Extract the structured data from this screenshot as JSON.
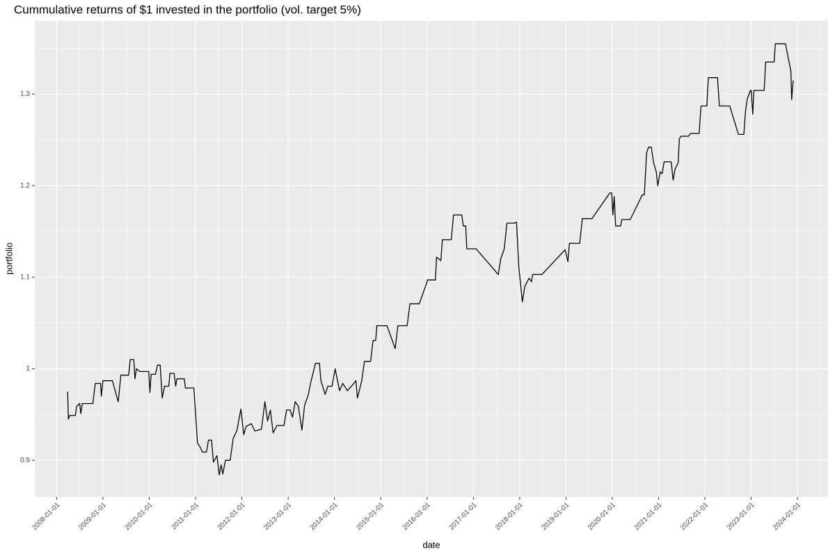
{
  "chart_data": {
    "type": "line",
    "title": "Cummulative returns of $1 invested in the portfolio (vol. target 5%)",
    "x_label": "date",
    "y_label": "portfolio",
    "x": [
      "2008-03-28",
      "2008-04-03",
      "2008-04-13",
      "2008-05-28",
      "2008-06-07",
      "2008-07-01",
      "2008-07-10",
      "2008-07-22",
      "2008-10-13",
      "2008-11-01",
      "2008-12-13",
      "2008-12-19",
      "2009-01-01",
      "2009-03-16",
      "2009-05-01",
      "2009-05-22",
      "2009-07-22",
      "2009-08-04",
      "2009-09-01",
      "2009-09-10",
      "2009-09-22",
      "2009-10-19",
      "2009-12-28",
      "2010-01-06",
      "2010-01-16",
      "2010-02-19",
      "2010-03-07",
      "2010-03-28",
      "2010-04-13",
      "2010-05-01",
      "2010-06-04",
      "2010-06-13",
      "2010-07-16",
      "2010-07-28",
      "2010-08-07",
      "2010-10-04",
      "2010-10-13",
      "2010-12-19",
      "2011-01-16",
      "2011-02-04",
      "2011-02-25",
      "2011-03-28",
      "2011-04-13",
      "2011-05-07",
      "2011-05-22",
      "2011-06-19",
      "2011-07-07",
      "2011-07-22",
      "2011-08-04",
      "2011-08-25",
      "2011-10-01",
      "2011-10-25",
      "2011-11-22",
      "2011-12-07",
      "2011-12-25",
      "2012-01-16",
      "2012-02-04",
      "2012-03-16",
      "2012-04-13",
      "2012-06-04",
      "2012-07-01",
      "2012-07-22",
      "2012-08-13",
      "2012-09-04",
      "2012-10-04",
      "2012-11-28",
      "2012-12-19",
      "2013-01-16",
      "2013-02-04",
      "2013-02-25",
      "2013-03-22",
      "2013-04-19",
      "2013-05-10",
      "2013-06-07",
      "2013-07-01",
      "2013-08-04",
      "2013-09-04",
      "2013-09-16",
      "2013-10-19",
      "2013-11-10",
      "2013-12-13",
      "2014-01-06",
      "2014-02-10",
      "2014-03-07",
      "2014-04-13",
      "2014-05-28",
      "2014-06-19",
      "2014-07-01",
      "2014-08-04",
      "2014-08-25",
      "2014-10-13",
      "2014-11-01",
      "2014-11-22",
      "2014-12-01",
      "2015-02-19",
      "2015-04-25",
      "2015-05-16",
      "2015-07-28",
      "2015-08-19",
      "2015-11-01",
      "2016-01-06",
      "2016-03-07",
      "2016-03-16",
      "2016-04-19",
      "2016-05-01",
      "2016-07-10",
      "2016-07-28",
      "2016-10-01",
      "2016-10-13",
      "2016-11-01",
      "2016-11-10",
      "2017-01-22",
      "2017-07-16",
      "2017-08-04",
      "2017-09-01",
      "2017-09-22",
      "2017-11-16",
      "2017-12-07",
      "2017-12-25",
      "2018-01-22",
      "2018-02-10",
      "2018-03-16",
      "2018-04-04",
      "2018-04-13",
      "2018-06-25",
      "2018-12-25",
      "2019-01-16",
      "2019-01-28",
      "2019-04-19",
      "2019-05-10",
      "2019-07-25",
      "2019-12-13",
      "2019-12-28",
      "2020-01-06",
      "2020-01-16",
      "2020-01-28",
      "2020-03-07",
      "2020-03-16",
      "2020-05-22",
      "2020-08-25",
      "2020-09-10",
      "2020-09-28",
      "2020-10-13",
      "2020-11-04",
      "2020-11-22",
      "2020-12-13",
      "2020-12-25",
      "2021-01-13",
      "2021-01-28",
      "2021-02-13",
      "2021-04-10",
      "2021-04-25",
      "2021-05-10",
      "2021-06-04",
      "2021-06-13",
      "2021-06-25",
      "2021-08-25",
      "2021-09-10",
      "2021-11-16",
      "2021-12-01",
      "2022-01-16",
      "2022-01-28",
      "2022-04-10",
      "2022-04-25",
      "2022-07-16",
      "2022-09-22",
      "2022-11-04",
      "2022-11-16",
      "2022-12-01",
      "2022-12-25",
      "2023-01-01",
      "2023-01-13",
      "2023-01-22",
      "2023-04-13",
      "2023-04-25",
      "2023-07-01",
      "2023-07-10",
      "2023-09-28",
      "2023-11-10",
      "2023-11-16",
      "2023-11-28"
    ],
    "series": [
      {
        "name": "portfolio",
        "color": "#000000",
        "values": [
          0.975,
          0.945,
          0.949,
          0.949,
          0.959,
          0.962,
          0.951,
          0.962,
          0.962,
          0.984,
          0.984,
          0.97,
          0.987,
          0.987,
          0.964,
          0.993,
          0.993,
          1.01,
          1.01,
          0.989,
          1.0,
          0.997,
          0.997,
          0.974,
          0.994,
          0.994,
          1.004,
          1.004,
          0.968,
          0.981,
          0.981,
          0.995,
          0.995,
          0.981,
          0.989,
          0.989,
          0.979,
          0.979,
          0.919,
          0.915,
          0.909,
          0.909,
          0.922,
          0.922,
          0.898,
          0.905,
          0.884,
          0.895,
          0.885,
          0.9,
          0.9,
          0.924,
          0.932,
          0.943,
          0.956,
          0.928,
          0.937,
          0.94,
          0.932,
          0.934,
          0.964,
          0.943,
          0.955,
          0.93,
          0.938,
          0.938,
          0.955,
          0.955,
          0.947,
          0.964,
          0.959,
          0.933,
          0.96,
          0.971,
          0.987,
          1.006,
          1.006,
          0.987,
          0.972,
          0.981,
          0.981,
          1.0,
          0.976,
          0.984,
          0.976,
          0.983,
          0.987,
          0.968,
          0.987,
          1.008,
          1.008,
          1.031,
          1.031,
          1.047,
          1.047,
          1.022,
          1.047,
          1.047,
          1.071,
          1.071,
          1.097,
          1.097,
          1.122,
          1.118,
          1.141,
          1.141,
          1.168,
          1.168,
          1.156,
          1.156,
          1.131,
          1.131,
          1.103,
          1.12,
          1.131,
          1.159,
          1.159,
          1.16,
          1.111,
          1.073,
          1.09,
          1.099,
          1.095,
          1.103,
          1.103,
          1.13,
          1.117,
          1.137,
          1.137,
          1.164,
          1.164,
          1.192,
          1.192,
          1.168,
          1.188,
          1.156,
          1.156,
          1.163,
          1.163,
          1.19,
          1.19,
          1.236,
          1.242,
          1.242,
          1.225,
          1.215,
          1.2,
          1.215,
          1.213,
          1.226,
          1.226,
          1.206,
          1.218,
          1.225,
          1.251,
          1.254,
          1.254,
          1.257,
          1.257,
          1.287,
          1.287,
          1.318,
          1.318,
          1.287,
          1.287,
          1.256,
          1.256,
          1.28,
          1.295,
          1.304,
          1.304,
          1.278,
          1.304,
          1.304,
          1.335,
          1.335,
          1.355,
          1.355,
          1.325,
          1.294,
          1.315
        ]
      }
    ],
    "xlim": [
      "2007-07-13",
      "2024-08-29"
    ],
    "xticks": [
      "2008-01-01",
      "2009-01-01",
      "2010-01-01",
      "2011-01-01",
      "2012-01-01",
      "2013-01-01",
      "2014-01-01",
      "2015-01-01",
      "2016-01-01",
      "2017-01-01",
      "2018-01-01",
      "2019-01-01",
      "2020-01-01",
      "2021-01-01",
      "2022-01-01",
      "2023-01-01",
      "2024-01-01"
    ],
    "ylim": [
      0.86,
      1.38
    ],
    "yticks": [
      0.9,
      1.0,
      1.1,
      1.2,
      1.3
    ],
    "grid": true,
    "minor_grid": true
  }
}
